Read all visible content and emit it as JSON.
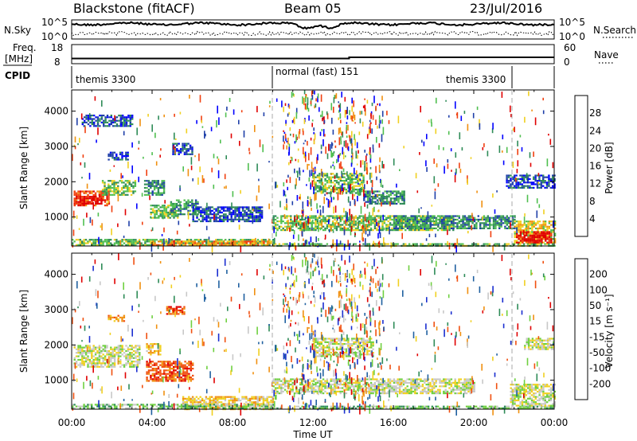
{
  "header": {
    "station": "Blackstone (fitACF)",
    "beam": "Beam 05",
    "date": "23/Jul/2016"
  },
  "top_panels": {
    "noise": {
      "left_label": "N.Sky",
      "right_label": "N.Search",
      "left_ticks": [
        "10^5",
        "10^0"
      ],
      "right_ticks": [
        "10^5",
        "10^0"
      ]
    },
    "freq": {
      "left_label_1": "Freq.",
      "left_label_2": "[MHz]",
      "left_ticks": [
        "18",
        "8"
      ],
      "right_ticks": [
        "60",
        "0"
      ],
      "right_label": "Nave"
    },
    "cpid": {
      "label": "CPID",
      "segments": [
        {
          "label": "themis 3300",
          "start_ut": 0,
          "end_ut": 10
        },
        {
          "label": "normal (fast) 151",
          "start_ut": 10,
          "end_ut": 21.8
        },
        {
          "label": "themis 3300",
          "start_ut": 21.8,
          "end_ut": 24
        }
      ]
    }
  },
  "chart_data": [
    {
      "type": "heatmap",
      "name": "power",
      "ylabel": "Slant Range [km]",
      "ylim": [
        180,
        4600
      ],
      "y_ticks": [
        1000,
        2000,
        3000,
        4000
      ],
      "colorbar_label": "Power [dB]",
      "colorbar_ticks": [
        "28",
        "24",
        "20",
        "16",
        "12",
        "8",
        "4"
      ],
      "colors": [
        "#0000ff",
        "#1f3fa8",
        "#2e8b57",
        "#4fbf4f",
        "#f0d020",
        "#f09010",
        "#f04010",
        "#e00000"
      ]
    },
    {
      "type": "heatmap",
      "name": "velocity",
      "ylabel": "Slant Range [km]",
      "ylim": [
        180,
        4600
      ],
      "y_ticks": [
        1000,
        2000,
        3000,
        4000
      ],
      "colorbar_label": "Velocity [m s⁻¹]",
      "colorbar_ticks": [
        "200",
        "100",
        "50",
        "15",
        "-15",
        "-50",
        "-100",
        "-200"
      ],
      "colors": [
        "#1a2ed0",
        "#2060a0",
        "#2e8b57",
        "#6fd040",
        "#c8c8c8",
        "#f0d020",
        "#f09010",
        "#f05010",
        "#e00000"
      ]
    }
  ],
  "time_axis": {
    "xlabel": "Time UT",
    "xlim": [
      0,
      24
    ],
    "tick_labels": [
      "00:00",
      "04:00",
      "08:00",
      "12:00",
      "16:00",
      "20:00",
      "00:00"
    ]
  },
  "power_patches": [
    {
      "t0": 0.1,
      "t1": 1.9,
      "r0": 1350,
      "r1": 1750,
      "c": 6
    },
    {
      "t0": 0.2,
      "t1": 1.5,
      "r0": 1400,
      "r1": 1600,
      "c": 7
    },
    {
      "t0": 1.5,
      "t1": 3.2,
      "r0": 1650,
      "r1": 2050,
      "c": 3
    },
    {
      "t0": 3.9,
      "t1": 5.3,
      "r0": 1000,
      "r1": 1350,
      "c": 3
    },
    {
      "t0": 4.9,
      "t1": 6.3,
      "r0": 1100,
      "r1": 1500,
      "c": 2
    },
    {
      "t0": 3.6,
      "t1": 4.6,
      "r0": 1650,
      "r1": 2050,
      "c": 2
    },
    {
      "t0": 1.8,
      "t1": 2.8,
      "r0": 2650,
      "r1": 2850,
      "c": 1
    },
    {
      "t0": 5.0,
      "t1": 6.0,
      "r0": 2800,
      "r1": 3100,
      "c": 1
    },
    {
      "t0": 6.0,
      "t1": 9.5,
      "r0": 900,
      "r1": 1300,
      "c": 1
    },
    {
      "t0": 0.0,
      "t1": 10.0,
      "r0": 190,
      "r1": 380,
      "c": 3
    },
    {
      "t0": 4.0,
      "t1": 9.8,
      "r0": 190,
      "r1": 330,
      "c": 5
    },
    {
      "t0": 10.0,
      "t1": 24.0,
      "r0": 190,
      "r1": 260,
      "c": 3
    },
    {
      "t0": 10.0,
      "t1": 19.0,
      "r0": 650,
      "r1": 1050,
      "c": 3
    },
    {
      "t0": 16.0,
      "t1": 22.0,
      "r0": 700,
      "r1": 1050,
      "c": 2
    },
    {
      "t0": 12.0,
      "t1": 14.5,
      "r0": 1700,
      "r1": 2250,
      "c": 3
    },
    {
      "t0": 14.5,
      "t1": 16.5,
      "r0": 1400,
      "r1": 1750,
      "c": 2
    },
    {
      "t0": 22.0,
      "t1": 24.0,
      "r0": 300,
      "r1": 900,
      "c": 4
    },
    {
      "t0": 22.1,
      "t1": 23.9,
      "r0": 300,
      "r1": 600,
      "c": 7
    },
    {
      "t0": 21.6,
      "t1": 24.0,
      "r0": 1850,
      "r1": 2200,
      "c": 1
    },
    {
      "t0": 0.5,
      "t1": 3.0,
      "r0": 3600,
      "r1": 3900,
      "c": 1
    }
  ],
  "velocity_patches": [
    {
      "t0": 0.1,
      "t1": 3.4,
      "r0": 1400,
      "r1": 2000,
      "c": 4
    },
    {
      "t0": 3.7,
      "t1": 6.0,
      "r0": 1000,
      "r1": 1550,
      "c": 7
    },
    {
      "t0": 3.7,
      "t1": 4.4,
      "r0": 1750,
      "r1": 2050,
      "c": 5
    },
    {
      "t0": 1.8,
      "t1": 2.6,
      "r0": 2700,
      "r1": 2850,
      "c": 6
    },
    {
      "t0": 4.7,
      "t1": 5.6,
      "r0": 2900,
      "r1": 3100,
      "c": 7
    },
    {
      "t0": 5.5,
      "t1": 10.0,
      "r0": 190,
      "r1": 550,
      "c": 5
    },
    {
      "t0": 0.0,
      "t1": 10.0,
      "r0": 190,
      "r1": 330,
      "c": 3
    },
    {
      "t0": 10.0,
      "t1": 24.0,
      "r0": 190,
      "r1": 280,
      "c": 3
    },
    {
      "t0": 10.0,
      "t1": 20.0,
      "r0": 650,
      "r1": 1050,
      "c": 4
    },
    {
      "t0": 12.0,
      "t1": 15.0,
      "r0": 1700,
      "r1": 2200,
      "c": 4
    },
    {
      "t0": 21.8,
      "t1": 24.0,
      "r0": 300,
      "r1": 900,
      "c": 4
    },
    {
      "t0": 22.5,
      "t1": 24.0,
      "r0": 1900,
      "r1": 2200,
      "c": 4
    }
  ]
}
